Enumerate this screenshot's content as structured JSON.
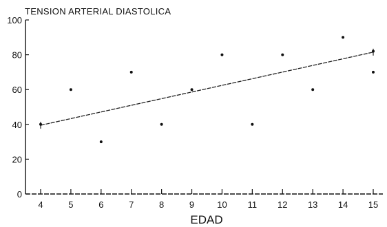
{
  "chart_data": {
    "type": "scatter",
    "title": "",
    "ylabel": "TENSION ARTERIAL DIASTOLICA",
    "xlabel": "EDAD",
    "x_ticks": [
      4,
      5,
      6,
      7,
      8,
      9,
      10,
      11,
      12,
      13,
      14,
      15
    ],
    "y_ticks": [
      0,
      20,
      40,
      60,
      80,
      100
    ],
    "xlim": [
      4,
      15
    ],
    "ylim": [
      0,
      100
    ],
    "grid": false,
    "series": [
      {
        "points": [
          {
            "x": 4,
            "y": 40
          },
          {
            "x": 5,
            "y": 60
          },
          {
            "x": 6,
            "y": 30
          },
          {
            "x": 7,
            "y": 70
          },
          {
            "x": 8,
            "y": 40
          },
          {
            "x": 9,
            "y": 60
          },
          {
            "x": 10,
            "y": 80
          },
          {
            "x": 11,
            "y": 40
          },
          {
            "x": 12,
            "y": 80
          },
          {
            "x": 13,
            "y": 60
          },
          {
            "x": 14,
            "y": 90
          },
          {
            "x": 15,
            "y": 82
          },
          {
            "x": 15,
            "y": 70
          }
        ]
      }
    ],
    "trend_line": {
      "x": [
        4,
        15
      ],
      "y": [
        39.5,
        81.5
      ]
    }
  }
}
